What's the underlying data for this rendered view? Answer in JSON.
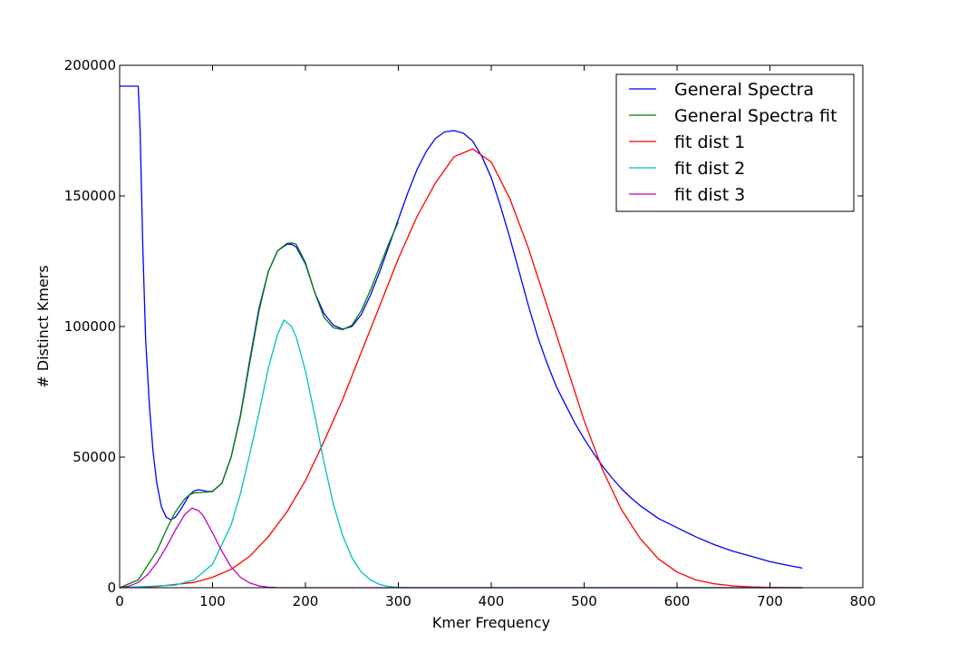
{
  "chart_data": {
    "type": "line",
    "title": "",
    "xlabel": "Kmer Frequency",
    "ylabel": "# Distinct Kmers",
    "xlim": [
      0,
      800
    ],
    "ylim": [
      0,
      200000
    ],
    "x_ticks": [
      "0",
      "100",
      "200",
      "300",
      "400",
      "500",
      "600",
      "700",
      "800"
    ],
    "y_ticks": [
      "0",
      "50000",
      "100000",
      "150000",
      "200000"
    ],
    "grid": false,
    "legend_position": "top-right",
    "series": [
      {
        "name": "General Spectra",
        "color": "#0000ff",
        "x": [
          0,
          20,
          22,
          25,
          28,
          32,
          36,
          40,
          45,
          50,
          55,
          60,
          65,
          70,
          75,
          80,
          85,
          90,
          95,
          100,
          110,
          120,
          130,
          140,
          150,
          160,
          170,
          180,
          185,
          190,
          200,
          210,
          220,
          230,
          240,
          250,
          260,
          270,
          280,
          290,
          300,
          310,
          320,
          330,
          340,
          350,
          360,
          370,
          380,
          390,
          400,
          410,
          420,
          430,
          440,
          450,
          460,
          470,
          480,
          490,
          500,
          510,
          520,
          530,
          540,
          550,
          560,
          580,
          600,
          620,
          640,
          660,
          680,
          700,
          720,
          735
        ],
        "values": [
          192000,
          192000,
          175000,
          130000,
          95000,
          70000,
          52000,
          40000,
          31000,
          27000,
          26000,
          27000,
          29500,
          32500,
          35500,
          37000,
          37500,
          37200,
          36800,
          36900,
          40000,
          50000,
          66000,
          87000,
          107000,
          121000,
          129000,
          131500,
          131500,
          130500,
          124000,
          113000,
          105000,
          100500,
          99000,
          100000,
          104500,
          112000,
          121000,
          131000,
          141000,
          151000,
          160000,
          167000,
          172000,
          174500,
          175000,
          174000,
          171000,
          165000,
          157000,
          146000,
          134000,
          121000,
          108000,
          96000,
          86000,
          77000,
          70000,
          63000,
          57000,
          51500,
          46500,
          42000,
          38000,
          34500,
          31500,
          26500,
          23000,
          19500,
          16500,
          14000,
          12000,
          10000,
          8500,
          7500
        ]
      },
      {
        "name": "General Spectra fit",
        "color": "#008000",
        "x": [
          0,
          20,
          40,
          50,
          60,
          70,
          75,
          80,
          90,
          100,
          110,
          120,
          130,
          140,
          150,
          160,
          170,
          180,
          185,
          190,
          200,
          210,
          220,
          230,
          240,
          250,
          260,
          270,
          280,
          290,
          300
        ],
        "values": [
          0,
          3000,
          14000,
          22000,
          29000,
          34000,
          35500,
          36300,
          36500,
          36800,
          40000,
          50000,
          65500,
          86000,
          106000,
          121000,
          129000,
          131800,
          132000,
          131500,
          124500,
          113000,
          103500,
          99500,
          98800,
          100500,
          106000,
          114000,
          123000,
          132000,
          140000
        ]
      },
      {
        "name": "fit dist 1",
        "color": "#ff0000",
        "x": [
          0,
          40,
          80,
          100,
          120,
          140,
          160,
          180,
          200,
          220,
          240,
          260,
          280,
          300,
          320,
          340,
          360,
          380,
          400,
          420,
          440,
          460,
          480,
          500,
          520,
          540,
          560,
          580,
          600,
          620,
          640,
          660,
          680,
          700,
          720,
          735
        ],
        "values": [
          0,
          500,
          2000,
          4000,
          7000,
          12000,
          19500,
          29000,
          41000,
          56000,
          72000,
          90000,
          108000,
          126000,
          142000,
          155000,
          165000,
          168000,
          163000,
          149000,
          130000,
          108000,
          86000,
          64000,
          45000,
          30000,
          19000,
          11000,
          6000,
          3000,
          1500,
          700,
          300,
          100,
          50,
          0
        ]
      },
      {
        "name": "fit dist 2",
        "color": "#00bfbf",
        "x": [
          0,
          60,
          80,
          100,
          120,
          130,
          140,
          150,
          160,
          170,
          177,
          185,
          190,
          200,
          210,
          220,
          230,
          240,
          250,
          260,
          270,
          280,
          290,
          300,
          320,
          735
        ],
        "values": [
          0,
          1000,
          3000,
          9000,
          24000,
          36000,
          51000,
          67000,
          84000,
          97000,
          102500,
          100000,
          96000,
          83000,
          66000,
          48000,
          32000,
          20000,
          11500,
          6000,
          3000,
          1200,
          400,
          100,
          0,
          0
        ]
      },
      {
        "name": "fit dist 3",
        "color": "#bf00bf",
        "x": [
          0,
          10,
          20,
          30,
          40,
          50,
          60,
          70,
          78,
          85,
          90,
          100,
          110,
          120,
          130,
          140,
          150,
          160,
          170,
          180,
          735
        ],
        "values": [
          0,
          600,
          2000,
          5000,
          9500,
          15500,
          22000,
          28000,
          30500,
          29500,
          27500,
          21000,
          14000,
          8000,
          4000,
          1800,
          700,
          200,
          50,
          0,
          0
        ]
      }
    ]
  }
}
